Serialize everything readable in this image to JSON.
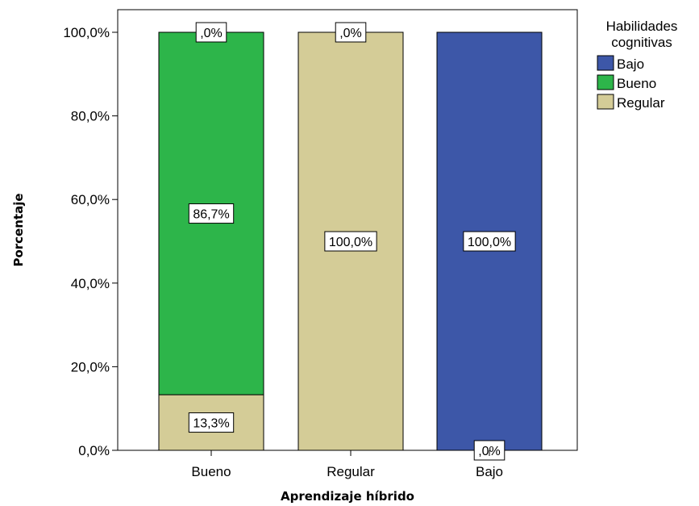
{
  "chart_data": {
    "type": "bar",
    "stacked": true,
    "title": "",
    "xlabel": "Aprendizaje híbrido",
    "ylabel": "Porcentaje",
    "categories": [
      "Bueno",
      "Regular",
      "Bajo"
    ],
    "ylim": [
      0,
      100
    ],
    "yticks": [
      "0,0%",
      "20,0%",
      "40,0%",
      "60,0%",
      "80,0%",
      "100,0%"
    ],
    "grid": false,
    "legend": {
      "title": "Habilidades cognitivas",
      "title_lines": [
        "Habilidades",
        "cognitivas"
      ],
      "position": "right",
      "entries": [
        "Bajo",
        "Bueno",
        "Regular"
      ]
    },
    "series": [
      {
        "name": "Regular",
        "color": "#d4cc97",
        "values": [
          13.3,
          100.0,
          0.0
        ],
        "labels": [
          "13,3%",
          "100,0%",
          ""
        ]
      },
      {
        "name": "Bueno",
        "color": "#2db54a",
        "values": [
          86.7,
          0.0,
          0.0
        ],
        "labels": [
          "86,7%",
          ",0%",
          ""
        ]
      },
      {
        "name": "Bajo",
        "color": "#3d57a8",
        "values": [
          0.0,
          0.0,
          100.0
        ],
        "labels": [
          ",0%",
          "",
          "100,0%"
        ]
      }
    ],
    "extra_labels": [
      {
        "category": "Bajo",
        "text": ",0%",
        "at": "bottom"
      }
    ]
  }
}
